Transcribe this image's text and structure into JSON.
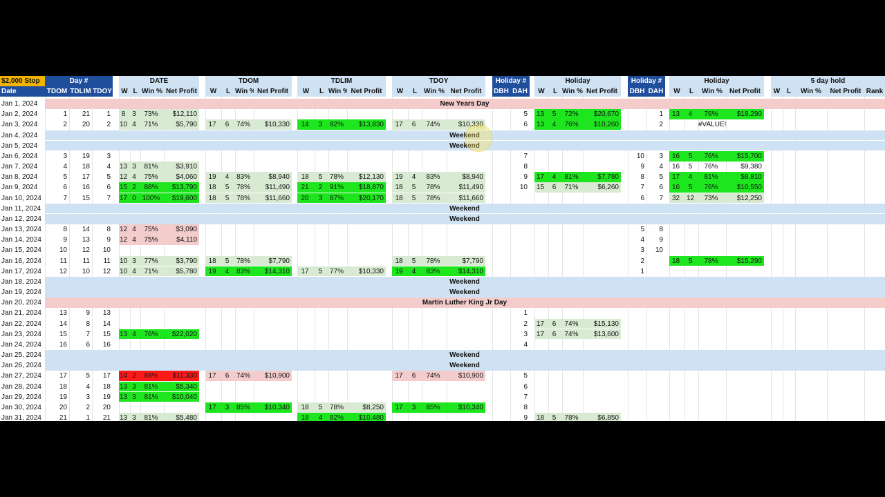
{
  "header": {
    "stop": "$2,000 Stop",
    "date": "Date",
    "groups": [
      {
        "title": "Day #",
        "style": "dark",
        "cols": [
          "TDOM",
          "TDLIM",
          "TDOY"
        ]
      },
      {
        "title": "DATE",
        "style": "light",
        "cols": [
          "W",
          "L",
          "Win %",
          "Net Profit"
        ]
      },
      {
        "title": "TDOM",
        "style": "light",
        "cols": [
          "W",
          "L",
          "Win %",
          "Net Profit"
        ]
      },
      {
        "title": "TDLIM",
        "style": "light",
        "cols": [
          "W",
          "L",
          "Win %",
          "Net Profit"
        ]
      },
      {
        "title": "TDOY",
        "style": "light",
        "cols": [
          "W",
          "L",
          "Win %",
          "Net Profit"
        ]
      },
      {
        "title": "Holiday #",
        "style": "dark",
        "cols": [
          "DBH",
          "DAH"
        ]
      },
      {
        "title": "Holiday",
        "style": "light",
        "cols": [
          "W",
          "L",
          "Win %",
          "Net Profit"
        ]
      },
      {
        "title": "Holiday #",
        "style": "dark",
        "cols": [
          "DBH",
          "DAH"
        ]
      },
      {
        "title": "Holiday",
        "style": "light",
        "cols": [
          "W",
          "L",
          "Win %",
          "Net Profit"
        ]
      },
      {
        "title": "5 day hold",
        "style": "light",
        "cols": [
          "W",
          "L",
          "Win %",
          "Net Profit",
          "Rank"
        ]
      }
    ]
  },
  "rows": [
    {
      "date": "Jan 1, 2024",
      "band": "holiday",
      "label": "New Years Day"
    },
    {
      "date": "Jan 2, 2024",
      "g": {
        "0": {
          "values": [
            1,
            21,
            1
          ]
        },
        "1": {
          "values": [
            8,
            3,
            "73%",
            "$12,110"
          ],
          "fill": "light"
        },
        "5": {
          "values": [
            null,
            5
          ]
        },
        "6": {
          "values": [
            13,
            5,
            "72%",
            "$20,670"
          ],
          "fill": "green"
        },
        "7": {
          "values": [
            null,
            1
          ]
        },
        "8": {
          "values": [
            13,
            4,
            "76%",
            "$18,290"
          ],
          "fill": "green"
        }
      }
    },
    {
      "date": "Jan 3, 2024",
      "g": {
        "0": {
          "values": [
            2,
            20,
            2
          ]
        },
        "1": {
          "values": [
            10,
            4,
            "71%",
            "$5,790"
          ],
          "fill": "light"
        },
        "2": {
          "values": [
            17,
            6,
            "74%",
            "$10,330"
          ],
          "fill": "light"
        },
        "3": {
          "values": [
            14,
            3,
            "82%",
            "$13,830"
          ],
          "fill": "green"
        },
        "4": {
          "values": [
            17,
            6,
            "74%",
            "$10,330"
          ],
          "fill": "light"
        },
        "5": {
          "values": [
            null,
            6
          ]
        },
        "6": {
          "values": [
            13,
            4,
            "76%",
            "$10,260"
          ],
          "fill": "green"
        },
        "7": {
          "values": [
            null,
            2
          ]
        },
        "8": {
          "values": [
            null,
            null,
            "#VALUE!"
          ]
        }
      }
    },
    {
      "date": "Jan 4, 2024",
      "band": "weekend",
      "label": "Weekend"
    },
    {
      "date": "Jan 5, 2024",
      "band": "weekend",
      "label": "Weekend"
    },
    {
      "date": "Jan 6, 2024",
      "g": {
        "0": {
          "values": [
            3,
            19,
            3
          ]
        },
        "5": {
          "values": [
            null,
            7
          ]
        },
        "7": {
          "values": [
            10,
            3
          ]
        },
        "8": {
          "values": [
            16,
            5,
            "76%",
            "$15,700"
          ],
          "fill": "green"
        }
      }
    },
    {
      "date": "Jan 7, 2024",
      "g": {
        "0": {
          "values": [
            4,
            18,
            4
          ]
        },
        "1": {
          "values": [
            13,
            3,
            "81%",
            "$3,910"
          ],
          "fill": "light"
        },
        "5": {
          "values": [
            null,
            8
          ]
        },
        "7": {
          "values": [
            9,
            4
          ]
        },
        "8": {
          "values": [
            16,
            5,
            "76%",
            "$9,380"
          ]
        }
      }
    },
    {
      "date": "Jan 8, 2024",
      "g": {
        "0": {
          "values": [
            5,
            17,
            5
          ]
        },
        "1": {
          "values": [
            12,
            4,
            "75%",
            "$4,060"
          ],
          "fill": "light"
        },
        "2": {
          "values": [
            19,
            4,
            "83%",
            "$8,940"
          ],
          "fill": "light"
        },
        "3": {
          "values": [
            18,
            5,
            "78%",
            "$12,130"
          ],
          "fill": "light"
        },
        "4": {
          "values": [
            19,
            4,
            "83%",
            "$8,940"
          ],
          "fill": "light"
        },
        "5": {
          "values": [
            null,
            9
          ]
        },
        "6": {
          "values": [
            17,
            4,
            "81%",
            "$7,780"
          ],
          "fill": "green"
        },
        "7": {
          "values": [
            8,
            5
          ]
        },
        "8": {
          "values": [
            17,
            4,
            "81%",
            "$8,810"
          ],
          "fill": "green"
        }
      }
    },
    {
      "date": "Jan 9, 2024",
      "g": {
        "0": {
          "values": [
            6,
            16,
            6
          ]
        },
        "1": {
          "values": [
            15,
            2,
            "88%",
            "$13,790"
          ],
          "fill": "green"
        },
        "2": {
          "values": [
            18,
            5,
            "78%",
            "$11,490"
          ],
          "fill": "light"
        },
        "3": {
          "values": [
            21,
            2,
            "91%",
            "$18,870"
          ],
          "fill": "green"
        },
        "4": {
          "values": [
            18,
            5,
            "78%",
            "$11,490"
          ],
          "fill": "light"
        },
        "5": {
          "values": [
            null,
            10
          ]
        },
        "6": {
          "values": [
            15,
            6,
            "71%",
            "$6,260"
          ],
          "fill": "light"
        },
        "7": {
          "values": [
            7,
            6
          ]
        },
        "8": {
          "values": [
            16,
            5,
            "76%",
            "$10,550"
          ],
          "fill": "green"
        }
      }
    },
    {
      "date": "Jan 10, 2024",
      "g": {
        "0": {
          "values": [
            7,
            15,
            7
          ]
        },
        "1": {
          "values": [
            17,
            0,
            "100%",
            "$19,600"
          ],
          "fill": "green"
        },
        "2": {
          "values": [
            18,
            5,
            "78%",
            "$11,660"
          ],
          "fill": "light"
        },
        "3": {
          "values": [
            20,
            3,
            "87%",
            "$20,170"
          ],
          "fill": "green"
        },
        "4": {
          "values": [
            18,
            5,
            "78%",
            "$11,660"
          ],
          "fill": "light"
        },
        "7": {
          "values": [
            6,
            7
          ]
        },
        "8": {
          "values": [
            32,
            12,
            "73%",
            "$12,250"
          ],
          "fill": "light"
        }
      }
    },
    {
      "date": "Jan 11, 2024",
      "band": "weekend",
      "label": "Weekend"
    },
    {
      "date": "Jan 12, 2024",
      "band": "weekend",
      "label": "Weekend"
    },
    {
      "date": "Jan 13, 2024",
      "g": {
        "0": {
          "values": [
            8,
            14,
            8
          ]
        },
        "1": {
          "values": [
            12,
            4,
            "75%",
            "$3,090"
          ],
          "fill": "pink"
        },
        "7": {
          "values": [
            5,
            8
          ]
        }
      }
    },
    {
      "date": "Jan 14, 2024",
      "g": {
        "0": {
          "values": [
            9,
            13,
            9
          ]
        },
        "1": {
          "values": [
            12,
            4,
            "75%",
            "$4,110"
          ],
          "fill": "pink"
        },
        "7": {
          "values": [
            4,
            9
          ]
        }
      }
    },
    {
      "date": "Jan 15, 2024",
      "g": {
        "0": {
          "values": [
            10,
            12,
            10
          ]
        },
        "7": {
          "values": [
            3,
            10
          ]
        }
      }
    },
    {
      "date": "Jan 16, 2024",
      "g": {
        "0": {
          "values": [
            11,
            11,
            11
          ]
        },
        "1": {
          "values": [
            10,
            3,
            "77%",
            "$3,790"
          ],
          "fill": "light"
        },
        "2": {
          "values": [
            18,
            5,
            "78%",
            "$7,790"
          ],
          "fill": "light"
        },
        "4": {
          "values": [
            18,
            5,
            "78%",
            "$7,790"
          ],
          "fill": "light"
        },
        "7": {
          "values": [
            2
          ]
        },
        "8": {
          "values": [
            18,
            5,
            "78%",
            "$15,290"
          ],
          "fill": "green"
        }
      }
    },
    {
      "date": "Jan 17, 2024",
      "g": {
        "0": {
          "values": [
            12,
            10,
            12
          ]
        },
        "1": {
          "values": [
            10,
            4,
            "71%",
            "$5,780"
          ],
          "fill": "light"
        },
        "2": {
          "values": [
            19,
            4,
            "83%",
            "$14,310"
          ],
          "fill": "green"
        },
        "3": {
          "values": [
            17,
            5,
            "77%",
            "$10,330"
          ],
          "fill": "light"
        },
        "4": {
          "values": [
            19,
            4,
            "83%",
            "$14,310"
          ],
          "fill": "green"
        },
        "7": {
          "values": [
            1
          ]
        }
      }
    },
    {
      "date": "Jan 18, 2024",
      "band": "weekend",
      "label": "Weekend"
    },
    {
      "date": "Jan 19, 2024",
      "band": "weekend",
      "label": "Weekend"
    },
    {
      "date": "Jan 20, 2024",
      "band": "holiday",
      "label": "Martin Luther King Jr Day"
    },
    {
      "date": "Jan 21, 2024",
      "g": {
        "0": {
          "values": [
            13,
            9,
            13
          ]
        },
        "5": {
          "values": [
            null,
            1
          ]
        }
      }
    },
    {
      "date": "Jan 22, 2024",
      "g": {
        "0": {
          "values": [
            14,
            8,
            14
          ]
        },
        "5": {
          "values": [
            null,
            2
          ]
        },
        "6": {
          "values": [
            17,
            6,
            "74%",
            "$15,130"
          ],
          "fill": "light"
        }
      }
    },
    {
      "date": "Jan 23, 2024",
      "g": {
        "0": {
          "values": [
            15,
            7,
            15
          ]
        },
        "1": {
          "values": [
            13,
            4,
            "76%",
            "$22,020"
          ],
          "fill": "green"
        },
        "5": {
          "values": [
            null,
            3
          ]
        },
        "6": {
          "values": [
            17,
            6,
            "74%",
            "$13,600"
          ],
          "fill": "light"
        }
      }
    },
    {
      "date": "Jan 24, 2024",
      "g": {
        "0": {
          "values": [
            16,
            6,
            16
          ]
        },
        "5": {
          "values": [
            null,
            4
          ]
        }
      }
    },
    {
      "date": "Jan 25, 2024",
      "band": "weekend",
      "label": "Weekend"
    },
    {
      "date": "Jan 26, 2024",
      "band": "weekend",
      "label": "Weekend"
    },
    {
      "date": "Jan 27, 2024",
      "g": {
        "0": {
          "values": [
            17,
            5,
            17
          ]
        },
        "1": {
          "values": [
            14,
            2,
            "88%",
            "$11,330"
          ],
          "fill": "red"
        },
        "2": {
          "values": [
            17,
            6,
            "74%",
            "$10,900"
          ],
          "fill": "pink"
        },
        "4": {
          "values": [
            17,
            6,
            "74%",
            "$10,900"
          ],
          "fill": "pink"
        },
        "5": {
          "values": [
            null,
            5
          ]
        }
      }
    },
    {
      "date": "Jan 28, 2024",
      "g": {
        "0": {
          "values": [
            18,
            4,
            18
          ]
        },
        "1": {
          "values": [
            13,
            3,
            "81%",
            "$5,340"
          ],
          "fill": "green"
        },
        "5": {
          "values": [
            null,
            6
          ]
        }
      }
    },
    {
      "date": "Jan 29, 2024",
      "g": {
        "0": {
          "values": [
            19,
            3,
            19
          ]
        },
        "1": {
          "values": [
            13,
            3,
            "81%",
            "$10,040"
          ],
          "fill": "green"
        },
        "5": {
          "values": [
            null,
            7
          ]
        }
      }
    },
    {
      "date": "Jan 30, 2024",
      "g": {
        "0": {
          "values": [
            20,
            2,
            20
          ]
        },
        "2": {
          "values": [
            17,
            3,
            "85%",
            "$10,340"
          ],
          "fill": "green"
        },
        "3": {
          "values": [
            18,
            5,
            "78%",
            "$8,250"
          ],
          "fill": "light"
        },
        "4": {
          "values": [
            17,
            3,
            "85%",
            "$10,340"
          ],
          "fill": "green"
        },
        "5": {
          "values": [
            null,
            8
          ]
        }
      }
    },
    {
      "date": "Jan 31, 2024",
      "g": {
        "0": {
          "values": [
            21,
            1,
            21
          ]
        },
        "1": {
          "values": [
            13,
            3,
            "81%",
            "$5,480"
          ],
          "fill": "light"
        },
        "3": {
          "values": [
            18,
            4,
            "82%",
            "$10,480"
          ],
          "fill": "green"
        },
        "5": {
          "values": [
            null,
            9
          ]
        },
        "6": {
          "values": [
            18,
            5,
            "78%",
            "$6,850"
          ],
          "fill": "light"
        }
      }
    }
  ]
}
